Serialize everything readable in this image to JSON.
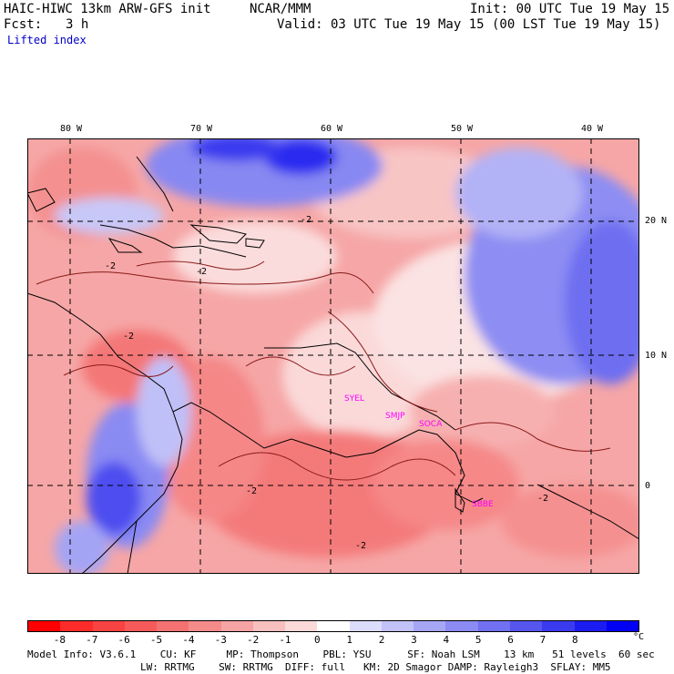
{
  "header": {
    "model": "HAIC-HIWC 13km ARW-GFS init",
    "org": "NCAR/MMM",
    "init": "Init: 00 UTC Tue 19 May 15",
    "fcst_label": "Fcst:",
    "fcst_value": "3 h",
    "valid": "Valid: 03 UTC Tue 19 May 15 (00 LST Tue 19 May 15)",
    "field": "Lifted index"
  },
  "map": {
    "lon_labels": [
      "80 W",
      "70 W",
      "60 W",
      "50 W",
      "40 W"
    ],
    "lat_labels": [
      "20 N",
      "10 N",
      "0"
    ],
    "contour_labels": [
      "-2",
      "-2",
      "-2",
      "-2",
      "-2",
      "-2",
      "-2"
    ],
    "stations": [
      "SYEL",
      "SMJP",
      "SOCA",
      "SBBE"
    ],
    "station_color": "#ff00ff"
  },
  "colorbar": {
    "ticks": [
      "-8",
      "-7",
      "-6",
      "-5",
      "-4",
      "-3",
      "-2",
      "-1",
      "0",
      "1",
      "2",
      "3",
      "4",
      "5",
      "6",
      "7",
      "8"
    ],
    "unit": "°C",
    "colors": [
      "#ff0000",
      "#fe2b2b",
      "#f84343",
      "#f65a5a",
      "#f47272",
      "#f58a8a",
      "#f6a3a3",
      "#f8bfbf",
      "#fbd9d9",
      "#ffffff",
      "#dcdcfb",
      "#c2c2f8",
      "#a6a6f5",
      "#8b8bf3",
      "#7070f1",
      "#5656ef",
      "#3a3aef",
      "#1c1cf1",
      "#0000f5"
    ]
  },
  "footer": {
    "line1": "Model Info: V3.6.1    CU: KF     MP: Thompson    PBL: YSU      SF: Noah LSM    13 km   51 levels  60 sec",
    "line2": "LW: RRTMG    SW: RRTMG  DIFF: full   KM: 2D Smagor DAMP: Rayleigh3  SFLAY: MM5"
  }
}
